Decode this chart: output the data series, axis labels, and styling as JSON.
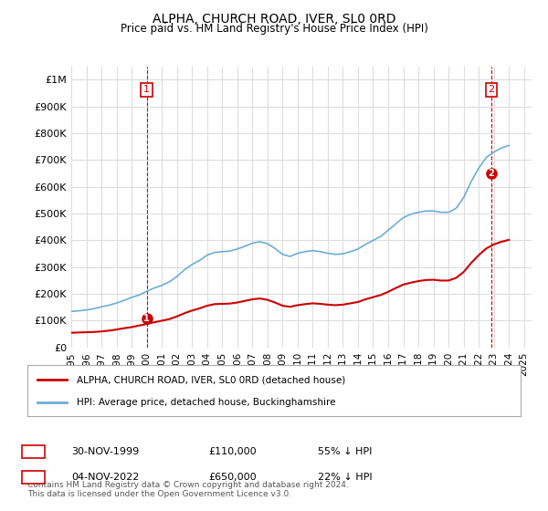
{
  "title": "ALPHA, CHURCH ROAD, IVER, SL0 0RD",
  "subtitle": "Price paid vs. HM Land Registry's House Price Index (HPI)",
  "ylabel_ticks": [
    "£0",
    "£100K",
    "£200K",
    "£300K",
    "£400K",
    "£500K",
    "£600K",
    "£700K",
    "£800K",
    "£900K",
    "£1M"
  ],
  "ytick_values": [
    0,
    100000,
    200000,
    300000,
    400000,
    500000,
    600000,
    700000,
    800000,
    900000,
    1000000
  ],
  "ylim": [
    0,
    1050000
  ],
  "xlim_start": 1995.0,
  "xlim_end": 2025.5,
  "hpi_color": "#6baed6",
  "price_color": "#cc0000",
  "dashed_color": "#cc0000",
  "background_color": "#ffffff",
  "grid_color": "#dddddd",
  "legend_label_red": "ALPHA, CHURCH ROAD, IVER, SL0 0RD (detached house)",
  "legend_label_blue": "HPI: Average price, detached house, Buckinghamshire",
  "footnote": "Contains HM Land Registry data © Crown copyright and database right 2024.\nThis data is licensed under the Open Government Licence v3.0.",
  "sale1_x": 2000.0,
  "sale1_y": 110000,
  "sale1_label": "1",
  "sale2_x": 2022.83,
  "sale2_y": 650000,
  "sale2_label": "2",
  "table_row1": [
    "1",
    "30-NOV-1999",
    "£110,000",
    "55% ↓ HPI"
  ],
  "table_row2": [
    "2",
    "04-NOV-2022",
    "£650,000",
    "22% ↓ HPI"
  ],
  "hpi_x": [
    1995.0,
    1995.5,
    1996.0,
    1996.5,
    1997.0,
    1997.5,
    1998.0,
    1998.5,
    1999.0,
    1999.5,
    2000.0,
    2000.5,
    2001.0,
    2001.5,
    2002.0,
    2002.5,
    2003.0,
    2003.5,
    2004.0,
    2004.5,
    2005.0,
    2005.5,
    2006.0,
    2006.5,
    2007.0,
    2007.5,
    2008.0,
    2008.5,
    2009.0,
    2009.5,
    2010.0,
    2010.5,
    2011.0,
    2011.5,
    2012.0,
    2012.5,
    2013.0,
    2013.5,
    2014.0,
    2014.5,
    2015.0,
    2015.5,
    2016.0,
    2016.5,
    2017.0,
    2017.5,
    2018.0,
    2018.5,
    2019.0,
    2019.5,
    2020.0,
    2020.5,
    2021.0,
    2021.5,
    2022.0,
    2022.5,
    2023.0,
    2023.5,
    2024.0
  ],
  "hpi_y": [
    135000,
    137000,
    140000,
    145000,
    152000,
    158000,
    166000,
    176000,
    187000,
    196000,
    210000,
    222000,
    232000,
    245000,
    265000,
    290000,
    310000,
    325000,
    345000,
    355000,
    358000,
    360000,
    368000,
    378000,
    390000,
    395000,
    388000,
    370000,
    348000,
    340000,
    352000,
    358000,
    362000,
    358000,
    352000,
    348000,
    350000,
    358000,
    368000,
    385000,
    400000,
    415000,
    438000,
    462000,
    485000,
    498000,
    505000,
    510000,
    510000,
    505000,
    505000,
    520000,
    560000,
    620000,
    670000,
    710000,
    730000,
    745000,
    755000
  ],
  "price_x": [
    1995.0,
    1995.5,
    1996.0,
    1996.5,
    1997.0,
    1997.5,
    1998.0,
    1998.5,
    1999.0,
    1999.5,
    2000.0,
    2000.5,
    2001.0,
    2001.5,
    2002.0,
    2002.5,
    2003.0,
    2003.5,
    2004.0,
    2004.5,
    2005.0,
    2005.5,
    2006.0,
    2006.5,
    2007.0,
    2007.5,
    2008.0,
    2008.5,
    2009.0,
    2009.5,
    2010.0,
    2010.5,
    2011.0,
    2011.5,
    2012.0,
    2012.5,
    2013.0,
    2013.5,
    2014.0,
    2014.5,
    2015.0,
    2015.5,
    2016.0,
    2016.5,
    2017.0,
    2017.5,
    2018.0,
    2018.5,
    2019.0,
    2019.5,
    2020.0,
    2020.5,
    2021.0,
    2021.5,
    2022.0,
    2022.5,
    2023.0,
    2023.5,
    2024.0
  ],
  "price_y": [
    55000,
    56000,
    57000,
    58000,
    60000,
    63000,
    67000,
    72000,
    76000,
    82000,
    88000,
    94000,
    100000,
    106000,
    116000,
    128000,
    138000,
    146000,
    156000,
    162000,
    163000,
    164000,
    168000,
    174000,
    180000,
    183000,
    178000,
    168000,
    156000,
    152000,
    158000,
    162000,
    165000,
    163000,
    160000,
    158000,
    160000,
    165000,
    170000,
    180000,
    188000,
    196000,
    208000,
    222000,
    235000,
    242000,
    248000,
    252000,
    253000,
    250000,
    250000,
    260000,
    282000,
    316000,
    345000,
    370000,
    385000,
    395000,
    402000
  ]
}
